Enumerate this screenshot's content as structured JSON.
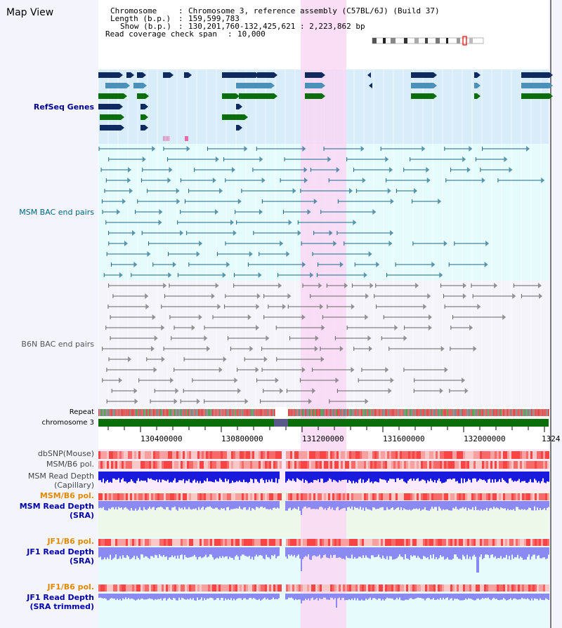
{
  "page": {
    "title": "Map View"
  },
  "header": {
    "chromosome_label": "Chromosome",
    "chromosome_value": "Chromosome 3, reference assembly (C57BL/6J) (Build 37)",
    "length_label": "Length (b.p.)",
    "length_value": "159,599,783",
    "show_label": "Show (b.p.)",
    "show_value": "130,201,760-132,425,621 : 2,223,862 bp",
    "coverage_label": "Read coverage check span",
    "coverage_value": "10,000"
  },
  "tracks": {
    "refseq": "RefSeq Genes",
    "msm_bac": "MSM BAC end pairs",
    "b6n_bac": "B6N BAC end pairs",
    "repeat": "Repeat",
    "chromosome": "chromosome 3",
    "dbsnp": "dbSNP(Mouse)",
    "msm_b6_pol": "MSM/B6 pol.",
    "msm_depth_cap_1": "MSM Read Depth",
    "msm_depth_cap_2": "(Capillary)",
    "msm_b6_pol_sra": "MSM/B6 pol.",
    "msm_depth_sra_1": "MSM Read Depth",
    "msm_depth_sra_2": "(SRA)",
    "jf1_b6_pol": "JF1/B6 pol.",
    "jf1_depth_sra_1": "JF1 Read Depth",
    "jf1_depth_sra_2": "(SRA)",
    "jf1_b6_pol_trim": "JF1/B6 pol.",
    "jf1_depth_trim_1": "JF1 Read Depth",
    "jf1_depth_trim_2": "(SRA trimmed)"
  },
  "axis": {
    "ticks": [
      "130400000",
      "130800000",
      "131200000",
      "131600000",
      "132000000",
      "1324"
    ]
  },
  "colors": {
    "highlight": "#f9d8f4",
    "refseq_bg": "#d8ecf9",
    "msm_bg": "#e6fbfb",
    "b6n_bg": "#f4f4fa",
    "gene_dark": "#0e2a5e",
    "gene_mid": "#4a90b8",
    "gene_green": "#0a6e0a",
    "chrom_green": "#0a6e0a",
    "depth_dark": "#1a1adc",
    "depth_light": "#8a8af2",
    "label_orange": "#e08a00",
    "label_blue": "#0000aa"
  }
}
